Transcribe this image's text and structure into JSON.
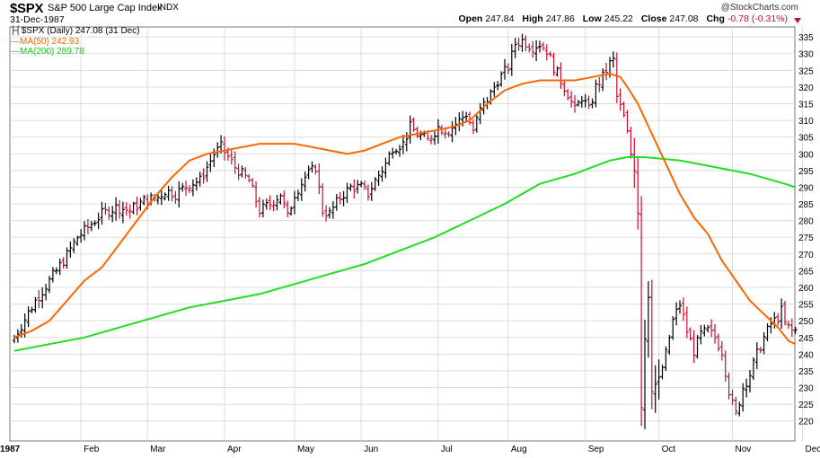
{
  "header": {
    "symbol": "$SPX",
    "name": "S&P 500 Large Cap Index",
    "exchange": "INDX",
    "watermark": "@StockCharts.com",
    "date": "31-Dec-1987",
    "open_label": "Open",
    "open": "247.84",
    "high_label": "High",
    "high": "247.86",
    "low_label": "Low",
    "low": "245.22",
    "close_label": "Close",
    "close": "247.08",
    "chg_label": "Chg",
    "chg": "-0.78 (-0.31%)",
    "chg_color": "#c8102e"
  },
  "legend": {
    "price": "$SPX (Daily) 247.08 (31 Dec)",
    "ma50": "MA(50) 242.93",
    "ma200": "MA(200) 289.78"
  },
  "colors": {
    "up": "#000000",
    "down": "#c8102e",
    "ma50": "#ff6600",
    "ma200": "#22dd22",
    "grid": "#dddddd"
  },
  "chart_data": {
    "type": "ohlc",
    "ylim": [
      214,
      338
    ],
    "y_ticks": [
      220,
      225,
      230,
      235,
      240,
      245,
      250,
      255,
      260,
      265,
      270,
      275,
      280,
      285,
      290,
      295,
      300,
      305,
      310,
      315,
      320,
      325,
      330,
      335
    ],
    "x_labels": [
      "1987",
      "Feb",
      "Mar",
      "Apr",
      "May",
      "Jun",
      "Jul",
      "Aug",
      "Sep",
      "Oct",
      "Nov",
      "Dec"
    ],
    "price_anchors": [
      [
        0,
        245
      ],
      [
        6,
        256
      ],
      [
        10,
        262
      ],
      [
        14,
        268
      ],
      [
        18,
        275
      ],
      [
        21,
        278
      ],
      [
        25,
        282
      ],
      [
        29,
        284
      ],
      [
        33,
        283
      ],
      [
        37,
        286
      ],
      [
        41,
        287
      ],
      [
        43,
        289
      ],
      [
        46,
        288
      ],
      [
        50,
        291
      ],
      [
        53,
        292
      ],
      [
        57,
        300
      ],
      [
        59,
        302
      ],
      [
        61,
        299
      ],
      [
        63,
        296
      ],
      [
        67,
        292
      ],
      [
        70,
        283
      ],
      [
        73,
        285
      ],
      [
        76,
        288
      ],
      [
        78,
        281
      ],
      [
        80,
        288
      ],
      [
        83,
        293
      ],
      [
        86,
        296
      ],
      [
        88,
        283
      ],
      [
        90,
        282
      ],
      [
        93,
        287
      ],
      [
        96,
        290
      ],
      [
        99,
        290
      ],
      [
        101,
        288
      ],
      [
        103,
        292
      ],
      [
        106,
        297
      ],
      [
        108,
        302
      ],
      [
        111,
        303
      ],
      [
        113,
        308
      ],
      [
        115,
        306
      ],
      [
        118,
        304
      ],
      [
        121,
        308
      ],
      [
        124,
        307
      ],
      [
        127,
        310
      ],
      [
        129,
        312
      ],
      [
        131,
        307
      ],
      [
        133,
        313
      ],
      [
        136,
        318
      ],
      [
        138,
        322
      ],
      [
        141,
        326
      ],
      [
        143,
        333
      ],
      [
        145,
        334
      ],
      [
        148,
        332
      ],
      [
        150,
        333
      ],
      [
        152,
        331
      ],
      [
        154,
        326
      ],
      [
        156,
        322
      ],
      [
        158,
        318
      ],
      [
        160,
        313
      ],
      [
        162,
        317
      ],
      [
        164,
        313
      ],
      [
        166,
        320
      ],
      [
        168,
        323
      ],
      [
        170,
        327
      ],
      [
        171,
        328
      ],
      [
        172,
        317
      ],
      [
        173,
        314
      ],
      [
        174,
        311
      ],
      [
        175,
        306
      ],
      [
        176,
        300
      ],
      [
        177,
        296
      ],
      [
        178,
        283
      ],
      [
        179,
        225
      ],
      [
        180,
        245
      ],
      [
        181,
        258
      ],
      [
        182,
        230
      ],
      [
        184,
        232
      ],
      [
        186,
        240
      ],
      [
        188,
        250
      ],
      [
        190,
        255
      ],
      [
        192,
        247
      ],
      [
        194,
        241
      ],
      [
        196,
        246
      ],
      [
        198,
        247
      ],
      [
        200,
        245
      ],
      [
        202,
        241
      ],
      [
        204,
        229
      ],
      [
        205,
        225
      ],
      [
        206,
        222
      ],
      [
        208,
        230
      ],
      [
        210,
        234
      ],
      [
        212,
        240
      ],
      [
        214,
        245
      ],
      [
        216,
        249
      ],
      [
        218,
        251
      ],
      [
        219,
        253
      ],
      [
        220,
        249
      ],
      [
        222,
        247
      ],
      [
        223,
        247.08
      ]
    ],
    "ma50_points": [
      [
        0,
        245
      ],
      [
        5,
        247
      ],
      [
        10,
        250
      ],
      [
        15,
        256
      ],
      [
        20,
        262
      ],
      [
        25,
        266
      ],
      [
        30,
        273
      ],
      [
        35,
        280
      ],
      [
        40,
        287
      ],
      [
        45,
        293
      ],
      [
        50,
        298
      ],
      [
        55,
        300
      ],
      [
        60,
        301
      ],
      [
        65,
        302
      ],
      [
        70,
        303
      ],
      [
        75,
        303
      ],
      [
        80,
        303
      ],
      [
        85,
        302
      ],
      [
        90,
        301
      ],
      [
        95,
        300
      ],
      [
        100,
        301
      ],
      [
        105,
        303
      ],
      [
        110,
        305
      ],
      [
        115,
        306
      ],
      [
        120,
        307
      ],
      [
        125,
        308
      ],
      [
        130,
        310
      ],
      [
        135,
        315
      ],
      [
        140,
        319
      ],
      [
        145,
        321
      ],
      [
        150,
        322
      ],
      [
        155,
        322
      ],
      [
        160,
        322
      ],
      [
        165,
        323
      ],
      [
        170,
        324
      ],
      [
        173,
        323
      ],
      [
        175,
        320
      ],
      [
        178,
        315
      ],
      [
        182,
        306
      ],
      [
        186,
        297
      ],
      [
        190,
        288
      ],
      [
        194,
        281
      ],
      [
        198,
        276
      ],
      [
        202,
        268
      ],
      [
        206,
        262
      ],
      [
        210,
        256
      ],
      [
        214,
        252
      ],
      [
        218,
        248
      ],
      [
        221,
        244
      ],
      [
        223,
        243
      ]
    ],
    "ma200_points": [
      [
        0,
        241
      ],
      [
        10,
        243
      ],
      [
        20,
        245
      ],
      [
        30,
        248
      ],
      [
        40,
        251
      ],
      [
        50,
        254
      ],
      [
        60,
        256
      ],
      [
        70,
        258
      ],
      [
        80,
        261
      ],
      [
        90,
        264
      ],
      [
        100,
        267
      ],
      [
        110,
        271
      ],
      [
        120,
        275
      ],
      [
        130,
        280
      ],
      [
        140,
        285
      ],
      [
        150,
        291
      ],
      [
        160,
        294
      ],
      [
        170,
        298
      ],
      [
        175,
        299
      ],
      [
        180,
        299
      ],
      [
        190,
        298
      ],
      [
        200,
        296
      ],
      [
        210,
        294
      ],
      [
        220,
        291
      ],
      [
        223,
        290
      ]
    ]
  }
}
